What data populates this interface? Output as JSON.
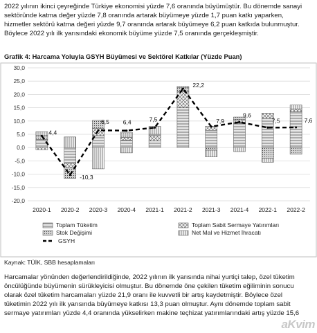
{
  "intro_paragraph": [
    "2022 yılının ikinci çeyreğinde Türkiye ekonomisi yüzde 7,6 oranında büyümüştür. Bu dönemde sanayi",
    "sektöründe katma değer yüzde 7,8 oranında artarak büyümeye yüzde 1,7 puan katkı yaparken,",
    "hizmetler sektörü katma değeri yüzde 9,7 oranında artarak büyümeye 6,2 puan katkıda bulunmuştur.",
    "Böylece 2022 yılı ilk yarısındaki ekonomik büyüme yüzde 7,5 oranında gerçekleşmiştir."
  ],
  "figure_caption": "Grafik 4: Harcama Yoluyla GSYH Büyümesi ve Sektörel Katkılar (Yüzde Puan)",
  "source_note": "Kaynak: TÜİK, SBB hesaplamaları",
  "body_paragraph": [
    "Harcamalar yönünden değerlendirildiğinde, 2022 yılının ilk yarısında nihai yurtiçi talep, özel tüketim",
    "öncülüğünde büyümenin sürükleyicisi olmuştur. Bu dönemde öne çekilen tüketim eğiliminin sonucu",
    "olarak özel tüketim harcamaları yüzde 21,9 oranı ile kuvvetli bir artış kaydetmiştir. Böylece özel",
    "tüketimin 2022 yılı ilk yarısında büyümeye katkısı 13,3 puan olmuştur.  Aynı dönemde toplam sabit",
    "sermaye yatırımları yüzde 4,4 oranında yükselirken makine teçhizat yatırımlarındaki artış yüzde 15,6"
  ],
  "watermark": "aKvim",
  "chart_data": {
    "type": "bar",
    "stacked": true,
    "categories": [
      "2020-1",
      "2020-2",
      "2020-3",
      "2020-4",
      "2021-1",
      "2021-2",
      "2021-3",
      "2021-4",
      "2022-1",
      "2022-2"
    ],
    "ylim": [
      -20,
      30
    ],
    "yticks": [
      "30,0",
      "25,0",
      "20,0",
      "15,0",
      "10,0",
      "5,0",
      "0,0",
      "-5,0",
      "-10,0",
      "-15,0",
      "-20,0"
    ],
    "grid": true,
    "legend_position": "bottom",
    "series": [
      {
        "name": "Toplam Tüketim",
        "pattern": "hatch-h",
        "values": [
          3.0,
          -5.8,
          4.5,
          2.8,
          2.5,
          15.0,
          6.5,
          9.0,
          11.0,
          13.5
        ]
      },
      {
        "name": "Toplam Sabit Sermaye Yatırımları",
        "pattern": "cross",
        "values": [
          -0.8,
          -1.8,
          2.8,
          1.0,
          2.0,
          6.0,
          1.5,
          1.5,
          2.0,
          1.0
        ]
      },
      {
        "name": "Stok Değişimi",
        "pattern": "dots",
        "values": [
          1.5,
          -4.0,
          3.0,
          2.0,
          0.5,
          1.5,
          -1.0,
          1.0,
          -4.0,
          -2.5
        ]
      },
      {
        "name": "Net Mal ve Hizmet İhracatı",
        "pattern": "vlines",
        "values": [
          1.5,
          4.0,
          -8.0,
          -2.0,
          3.0,
          0.5,
          -2.5,
          -1.5,
          -1.5,
          1.5
        ]
      },
      {
        "name": "GSYH",
        "type": "line",
        "style": "dashed",
        "values": [
          4.4,
          -10.3,
          6.5,
          6.4,
          7.5,
          22.2,
          7.9,
          9.6,
          7.5,
          7.6
        ],
        "labels": [
          "4,4",
          "-10,3",
          "6,5",
          "6,4",
          "7,5",
          "22,2",
          "7,9",
          "9,6",
          "7,5",
          "7,6"
        ]
      }
    ]
  },
  "colors": {
    "bar_fill": "#e8e8e8",
    "pattern": "#555555",
    "grid": "#d9d9d9",
    "axis": "#bfbfbf",
    "line": "#000000"
  }
}
